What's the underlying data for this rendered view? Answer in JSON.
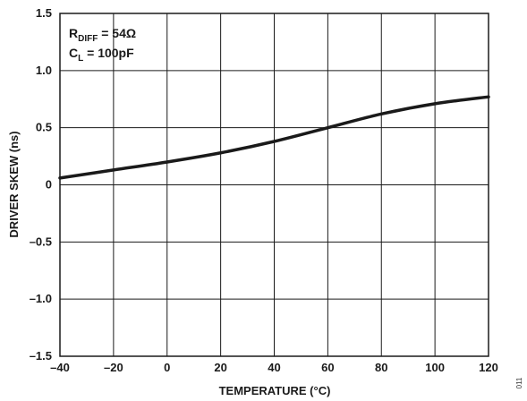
{
  "chart_data": {
    "type": "line",
    "xlabel": "TEMPERATURE (°C)",
    "ylabel": "DRIVER SKEW (ns)",
    "xlim": [
      -40,
      120
    ],
    "ylim": [
      -1.5,
      1.5
    ],
    "x_ticks": [
      -40,
      -20,
      0,
      20,
      40,
      60,
      80,
      100,
      120
    ],
    "x_tick_labels": [
      "–40",
      "–20",
      "0",
      "20",
      "40",
      "60",
      "80",
      "100",
      "120"
    ],
    "y_ticks": [
      1.5,
      1.0,
      0.5,
      0,
      -0.5,
      -1.0,
      -1.5
    ],
    "y_tick_labels": [
      "1.5",
      "1.0",
      "0.5",
      "0",
      "–0.5",
      "–1.0",
      "–1.5"
    ],
    "grid": true,
    "series": [
      {
        "x": [
          -40,
          -20,
          0,
          20,
          40,
          60,
          80,
          100,
          120
        ],
        "y": [
          0.06,
          0.13,
          0.2,
          0.28,
          0.38,
          0.5,
          0.62,
          0.71,
          0.77
        ]
      }
    ],
    "annotations": {
      "line1_main": "R",
      "line1_sub": "DIFF",
      "line1_value": " = 54Ω",
      "line2_main": "C",
      "line2_sub": "L",
      "line2_value": " = 100pF"
    },
    "figure_id": "011",
    "colors": {
      "curve": "#1a1a1a",
      "grid": "#1a1a1a",
      "frame": "#1a1a1a"
    }
  }
}
